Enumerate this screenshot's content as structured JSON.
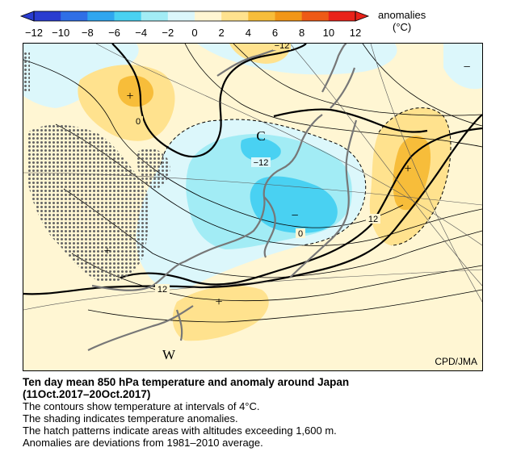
{
  "legend": {
    "label_line1": "anomalies",
    "label_line2": "(°C)",
    "ticks": [
      "−12",
      "−10",
      "−8",
      "−6",
      "−4",
      "−2",
      "0",
      "2",
      "4",
      "6",
      "8",
      "10",
      "12"
    ],
    "colors": [
      "#2a3cd0",
      "#2f6fe6",
      "#2fa6ef",
      "#49d1f2",
      "#a2ecf5",
      "#dcf7fb",
      "#fff6d3",
      "#ffe28e",
      "#f7bd3a",
      "#f29617",
      "#ee5a16",
      "#e9221a"
    ]
  },
  "map": {
    "credit": "CPD/JMA",
    "markers": {
      "plus": "+",
      "minus": "−",
      "cold": "C",
      "warm": "W"
    },
    "contour_labels": {
      "a": "−12",
      "b": "−12",
      "c": "0",
      "d": "0",
      "e": "12",
      "f": "12"
    }
  },
  "caption": {
    "title_line1": "Ten day mean 850 hPa temperature and anomaly around Japan",
    "title_line2": "(11Oct.2017–20Oct.2017)",
    "line1": "The contours show temperature at intervals of 4°C.",
    "line2": "The shading indicates temperature anomalies.",
    "line3": "The hatch patterns indicate areas with altitudes exceeding 1,600 m.",
    "line4": "Anomalies are deviations from 1981–2010 average."
  }
}
